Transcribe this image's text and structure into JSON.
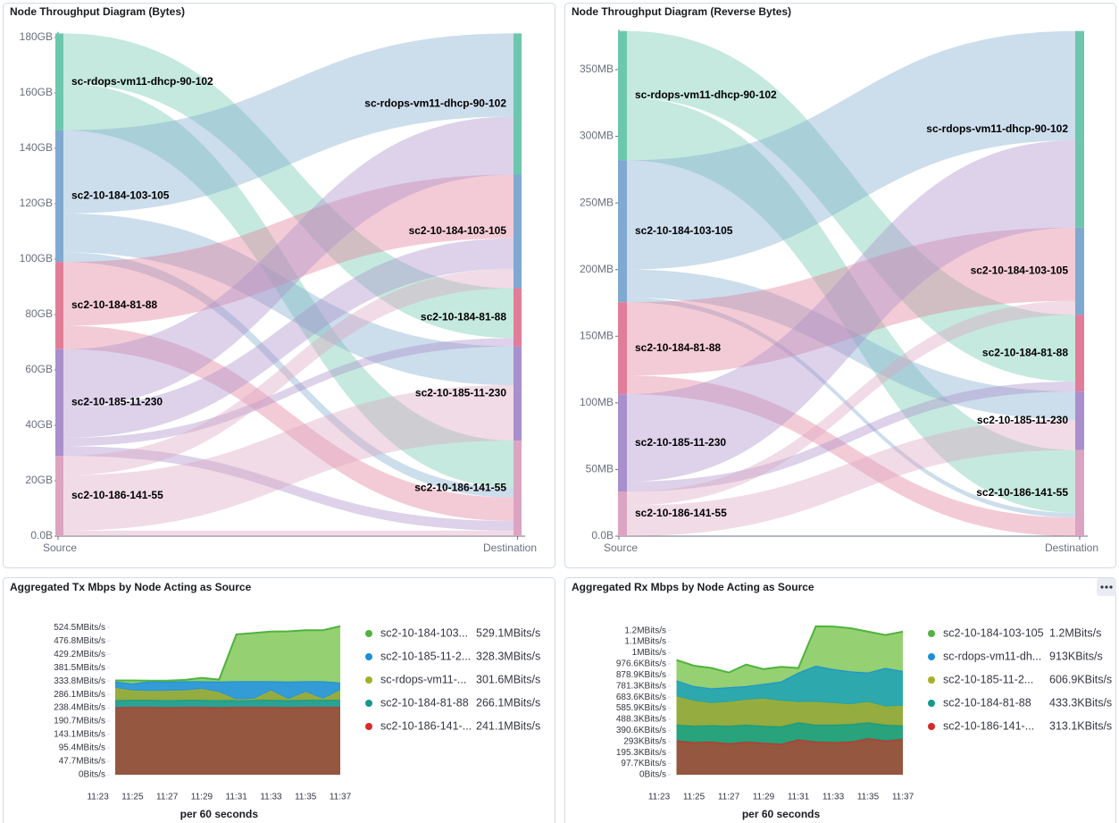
{
  "chart_data": [
    {
      "type": "sankey",
      "title": "Node Throughput Diagram (Bytes)",
      "source_label": "Source",
      "target_label": "Destination",
      "ylim": [
        0,
        182
      ],
      "yticks": [
        {
          "value": 0,
          "label": "0.0B"
        },
        {
          "value": 20,
          "label": "20GB"
        },
        {
          "value": 40,
          "label": "40GB"
        },
        {
          "value": 60,
          "label": "60GB"
        },
        {
          "value": 80,
          "label": "80GB"
        },
        {
          "value": 100,
          "label": "100GB"
        },
        {
          "value": 120,
          "label": "120GB"
        },
        {
          "value": 140,
          "label": "140GB"
        },
        {
          "value": 160,
          "label": "160GB"
        },
        {
          "value": 180,
          "label": "180GB"
        }
      ],
      "nodes": [
        {
          "name": "sc-rdops-vm11-dhcp-90-102",
          "color": "#6dc7ad"
        },
        {
          "name": "sc2-10-184-103-105",
          "color": "#7fa9d0"
        },
        {
          "name": "sc2-10-184-81-88",
          "color": "#e17d98"
        },
        {
          "name": "sc2-10-185-11-230",
          "color": "#a98fcb"
        },
        {
          "name": "sc2-10-186-141-55",
          "color": "#dba4c0"
        }
      ],
      "links": [
        {
          "source": "sc-rdops-vm11-dhcp-90-102",
          "target": "sc2-10-184-81-88",
          "value": 18
        },
        {
          "source": "sc-rdops-vm11-dhcp-90-102",
          "target": "sc2-10-186-141-55",
          "value": 17
        },
        {
          "source": "sc2-10-184-103-105",
          "target": "sc-rdops-vm11-dhcp-90-102",
          "value": 30
        },
        {
          "source": "sc2-10-184-103-105",
          "target": "sc2-10-185-11-230",
          "value": 14
        },
        {
          "source": "sc2-10-184-103-105",
          "target": "sc2-10-186-141-55",
          "value": 3.5
        },
        {
          "source": "sc2-10-184-81-88",
          "target": "sc2-10-184-103-105",
          "value": 23
        },
        {
          "source": "sc2-10-184-81-88",
          "target": "sc2-10-186-141-55",
          "value": 8.5
        },
        {
          "source": "sc2-10-185-11-230",
          "target": "sc-rdops-vm11-dhcp-90-102",
          "value": 21
        },
        {
          "source": "sc2-10-185-11-230",
          "target": "sc2-10-184-103-105",
          "value": 11
        },
        {
          "source": "sc2-10-185-11-230",
          "target": "sc2-10-184-81-88",
          "value": 3
        },
        {
          "source": "sc2-10-185-11-230",
          "target": "sc2-10-186-141-55",
          "value": 3.5
        },
        {
          "source": "sc2-10-186-141-55",
          "target": "sc2-10-184-103-105",
          "value": 7
        },
        {
          "source": "sc2-10-186-141-55",
          "target": "sc2-10-185-11-230",
          "value": 20
        },
        {
          "source": "sc2-10-186-141-55",
          "target": "sc2-10-186-141-55",
          "value": 2
        }
      ]
    },
    {
      "type": "sankey",
      "title": "Node Throughput Diagram (Reverse Bytes)",
      "source_label": "Source",
      "target_label": "Destination",
      "ylim": [
        0,
        380
      ],
      "yticks": [
        {
          "value": 0,
          "label": "0.0B"
        },
        {
          "value": 50,
          "label": "50MB"
        },
        {
          "value": 100,
          "label": "100MB"
        },
        {
          "value": 150,
          "label": "150MB"
        },
        {
          "value": 200,
          "label": "200MB"
        },
        {
          "value": 250,
          "label": "250MB"
        },
        {
          "value": 300,
          "label": "300MB"
        },
        {
          "value": 350,
          "label": "350MB"
        }
      ],
      "nodes": [
        {
          "name": "sc-rdops-vm11-dhcp-90-102",
          "color": "#6dc7ad"
        },
        {
          "name": "sc2-10-184-103-105",
          "color": "#7fa9d0"
        },
        {
          "name": "sc2-10-184-81-88",
          "color": "#e17d98"
        },
        {
          "name": "sc2-10-185-11-230",
          "color": "#a98fcb"
        },
        {
          "name": "sc2-10-186-141-55",
          "color": "#dba4c0"
        }
      ],
      "links": [
        {
          "source": "sc-rdops-vm11-dhcp-90-102",
          "target": "sc2-10-184-81-88",
          "value": 50
        },
        {
          "source": "sc-rdops-vm11-dhcp-90-102",
          "target": "sc2-10-186-141-55",
          "value": 47
        },
        {
          "source": "sc2-10-184-103-105",
          "target": "sc-rdops-vm11-dhcp-90-102",
          "value": 82
        },
        {
          "source": "sc2-10-184-103-105",
          "target": "sc2-10-185-11-230",
          "value": 21
        },
        {
          "source": "sc2-10-184-103-105",
          "target": "sc2-10-186-141-55",
          "value": 3.5
        },
        {
          "source": "sc2-10-184-81-88",
          "target": "sc2-10-184-103-105",
          "value": 55
        },
        {
          "source": "sc2-10-184-81-88",
          "target": "sc2-10-186-141-55",
          "value": 14
        },
        {
          "source": "sc2-10-185-11-230",
          "target": "sc-rdops-vm11-dhcp-90-102",
          "value": 65.5
        },
        {
          "source": "sc2-10-185-11-230",
          "target": "sc2-10-184-81-88",
          "value": 7.5
        },
        {
          "source": "sc2-10-186-141-55",
          "target": "sc2-10-184-103-105",
          "value": 10.5
        },
        {
          "source": "sc2-10-186-141-55",
          "target": "sc2-10-185-11-230",
          "value": 23
        }
      ]
    },
    {
      "type": "stacked-area",
      "title": "Aggregated Tx Mbps by Node Acting as Source",
      "xlabel": "per 60 seconds",
      "x": [
        "11:24",
        "11:25",
        "11:26",
        "11:27",
        "11:28",
        "11:29",
        "11:30",
        "11:31",
        "11:32",
        "11:33",
        "11:34",
        "11:35",
        "11:36",
        "11:37"
      ],
      "xlim": [
        "11:23",
        "11:37"
      ],
      "xticks": [
        "11:23",
        "11:25",
        "11:27",
        "11:29",
        "11:31",
        "11:33",
        "11:35",
        "11:37"
      ],
      "ylim": [
        0,
        530
      ],
      "yticks": [
        {
          "value": 0,
          "label": "0Bits/s"
        },
        {
          "value": 47.7,
          "label": "47.7MBits/s"
        },
        {
          "value": 95.4,
          "label": "95.4MBits/s"
        },
        {
          "value": 143.1,
          "label": "143.1MBits/s"
        },
        {
          "value": 190.7,
          "label": "190.7MBits/s"
        },
        {
          "value": 238.4,
          "label": "238.4MBits/s"
        },
        {
          "value": 286.1,
          "label": "286.1MBits/s"
        },
        {
          "value": 333.8,
          "label": "333.8MBits/s"
        },
        {
          "value": 381.5,
          "label": "381.5MBits/s"
        },
        {
          "value": 429.2,
          "label": "429.2MBits/s"
        },
        {
          "value": 476.8,
          "label": "476.8MBits/s"
        },
        {
          "value": 524.5,
          "label": "524.5MBits/s"
        }
      ],
      "series": [
        {
          "name": "sc2-10-184-103...",
          "legend_value": "529.1MBits/s",
          "color": "#4fb33d",
          "fill": "#8fcf6b",
          "values": [
            4,
            11,
            2,
            3,
            5,
            12,
            7,
            167,
            172,
            177,
            179,
            182,
            182,
            200.8
          ]
        },
        {
          "name": "sc2-10-185-11-2...",
          "legend_value": "328.3MBits/s",
          "color": "#1c8fd6",
          "fill": "#2896d3",
          "values": [
            23,
            25,
            35,
            33,
            33,
            28,
            38,
            65,
            63,
            33,
            63,
            38,
            63,
            26.7
          ]
        },
        {
          "name": "sc-rdops-vm11-...",
          "legend_value": "301.6MBits/s",
          "color": "#a3b12a",
          "fill": "#8ea836",
          "values": [
            44,
            34,
            32,
            34,
            34,
            39,
            29,
            2,
            4,
            34,
            4,
            29,
            4,
            35.5
          ]
        },
        {
          "name": "sc2-10-184-81-88",
          "legend_value": "266.1MBits/s",
          "color": "#14998a",
          "fill": "#1d9e8e",
          "values": [
            25,
            25,
            25,
            25,
            25,
            25,
            25,
            25,
            25,
            25,
            25,
            25,
            25,
            25
          ]
        },
        {
          "name": "sc2-10-186-141-...",
          "legend_value": "241.1MBits/s",
          "color": "#d8282a",
          "fill": "#8f4e35",
          "values": [
            240,
            241,
            241,
            240,
            241,
            241,
            240,
            241,
            241,
            241,
            240,
            241,
            241,
            241.1
          ]
        }
      ]
    },
    {
      "type": "stacked-area",
      "title": "Aggregated Rx Mbps by Node Acting as Source",
      "xlabel": "per 60 seconds",
      "x": [
        "11:24",
        "11:25",
        "11:26",
        "11:27",
        "11:28",
        "11:29",
        "11:30",
        "11:31",
        "11:32",
        "11:33",
        "11:34",
        "11:35",
        "11:36",
        "11:37"
      ],
      "xlim": [
        "11:23",
        "11:37"
      ],
      "xticks": [
        "11:23",
        "11:25",
        "11:27",
        "11:29",
        "11:31",
        "11:33",
        "11:35",
        "11:37"
      ],
      "ylim": [
        0,
        1310
      ],
      "yticks": [
        {
          "value": 0,
          "label": "0Bits/s"
        },
        {
          "value": 97.7,
          "label": "97.7KBits/s"
        },
        {
          "value": 195.3,
          "label": "195.3KBits/s"
        },
        {
          "value": 293,
          "label": "293KBits/s"
        },
        {
          "value": 390.6,
          "label": "390.6KBits/s"
        },
        {
          "value": 488.3,
          "label": "488.3KBits/s"
        },
        {
          "value": 585.9,
          "label": "585.9KBits/s"
        },
        {
          "value": 683.6,
          "label": "683.6KBits/s"
        },
        {
          "value": 781.3,
          "label": "781.3KBits/s"
        },
        {
          "value": 878.9,
          "label": "878.9KBits/s"
        },
        {
          "value": 976.6,
          "label": "976.6KBits/s"
        },
        {
          "value": 1074.2,
          "label": "1MBits/s"
        },
        {
          "value": 1171.9,
          "label": "1.1MBits/s"
        },
        {
          "value": 1269.5,
          "label": "1.2MBits/s"
        }
      ],
      "series": [
        {
          "name": "sc2-10-184-103-105",
          "legend_value": "1.2MBits/s",
          "color": "#4fb33d",
          "fill": "#8fcf6b",
          "values": [
            180,
            180,
            180,
            130,
            190,
            130,
            130,
            40,
            347,
            375,
            380,
            360,
            290,
            347
          ]
        },
        {
          "name": "sc-rdops-vm11-dh...",
          "legend_value": "913KBits/s",
          "color": "#1c8fd6",
          "fill": "#22a3a9",
          "values": [
            140,
            130,
            130,
            130,
            120,
            130,
            170,
            260,
            320,
            300,
            290,
            260,
            340,
            306.1
          ]
        },
        {
          "name": "sc2-10-185-11-2...",
          "legend_value": "606.9KBits/s",
          "color": "#a3b12a",
          "fill": "#8ea836",
          "values": [
            250,
            220,
            195,
            210,
            220,
            240,
            225,
            180,
            200,
            190,
            175,
            180,
            160,
            173.6
          ]
        },
        {
          "name": "sc2-10-184-81-88",
          "legend_value": "433.3KBits/s",
          "color": "#14998a",
          "fill": "#1d9e75",
          "values": [
            140,
            145,
            145,
            155,
            150,
            150,
            155,
            150,
            150,
            155,
            155,
            140,
            140,
            120.2
          ]
        },
        {
          "name": "sc2-10-186-141-...",
          "legend_value": "313.1KBits/s",
          "color": "#d8282a",
          "fill": "#8f4e35",
          "values": [
            300,
            285,
            290,
            275,
            290,
            280,
            270,
            310,
            290,
            285,
            290,
            320,
            300,
            313.1
          ]
        }
      ]
    }
  ]
}
